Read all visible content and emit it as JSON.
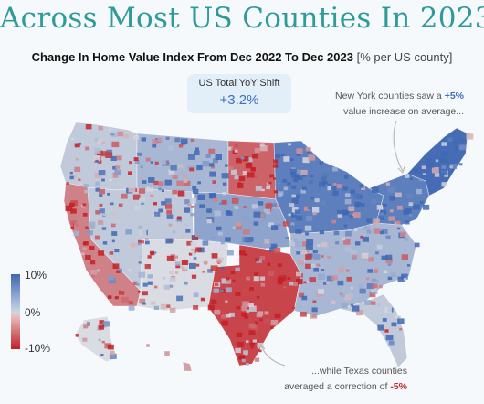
{
  "title": "Across Most US Counties In 2023",
  "subtitle": "Change In Home Value Index From Dec 2022 To Dec 2023",
  "subtitle_unit": "[% per US county]",
  "yoy": {
    "label": "US Total YoY Shift",
    "value": "+3.2%"
  },
  "ny_note": {
    "line1": "New York counties saw a",
    "highlight": "+5%",
    "line2": "value increase on average..."
  },
  "tx_note": {
    "line1": "...while Texas counties",
    "line2": "averaged a correction of",
    "highlight": "-5%"
  },
  "legend": {
    "top": "10%",
    "mid": "0%",
    "bottom": "-10%"
  },
  "colors": {
    "title": "#2f9a9a",
    "positive": "#3f67b3",
    "neutral": "#d9dde3",
    "negative": "#c31f25",
    "box": "#e2eef8"
  },
  "regions": [
    {
      "name": "pacific-northwest",
      "value": 1
    },
    {
      "name": "california",
      "value": -3
    },
    {
      "name": "nevada-utah",
      "value": 1
    },
    {
      "name": "southwest",
      "value": 0
    },
    {
      "name": "northern-rockies",
      "value": 2
    },
    {
      "name": "dakotas",
      "value": -4
    },
    {
      "name": "central-plains",
      "value": 3
    },
    {
      "name": "texas",
      "value": -5
    },
    {
      "name": "midwest",
      "value": 5
    },
    {
      "name": "south",
      "value": 2
    },
    {
      "name": "florida",
      "value": 1
    },
    {
      "name": "new-york",
      "value": 5
    },
    {
      "name": "new-england",
      "value": 6
    },
    {
      "name": "alaska",
      "value": 0
    },
    {
      "name": "hawaii",
      "value": -2
    }
  ]
}
